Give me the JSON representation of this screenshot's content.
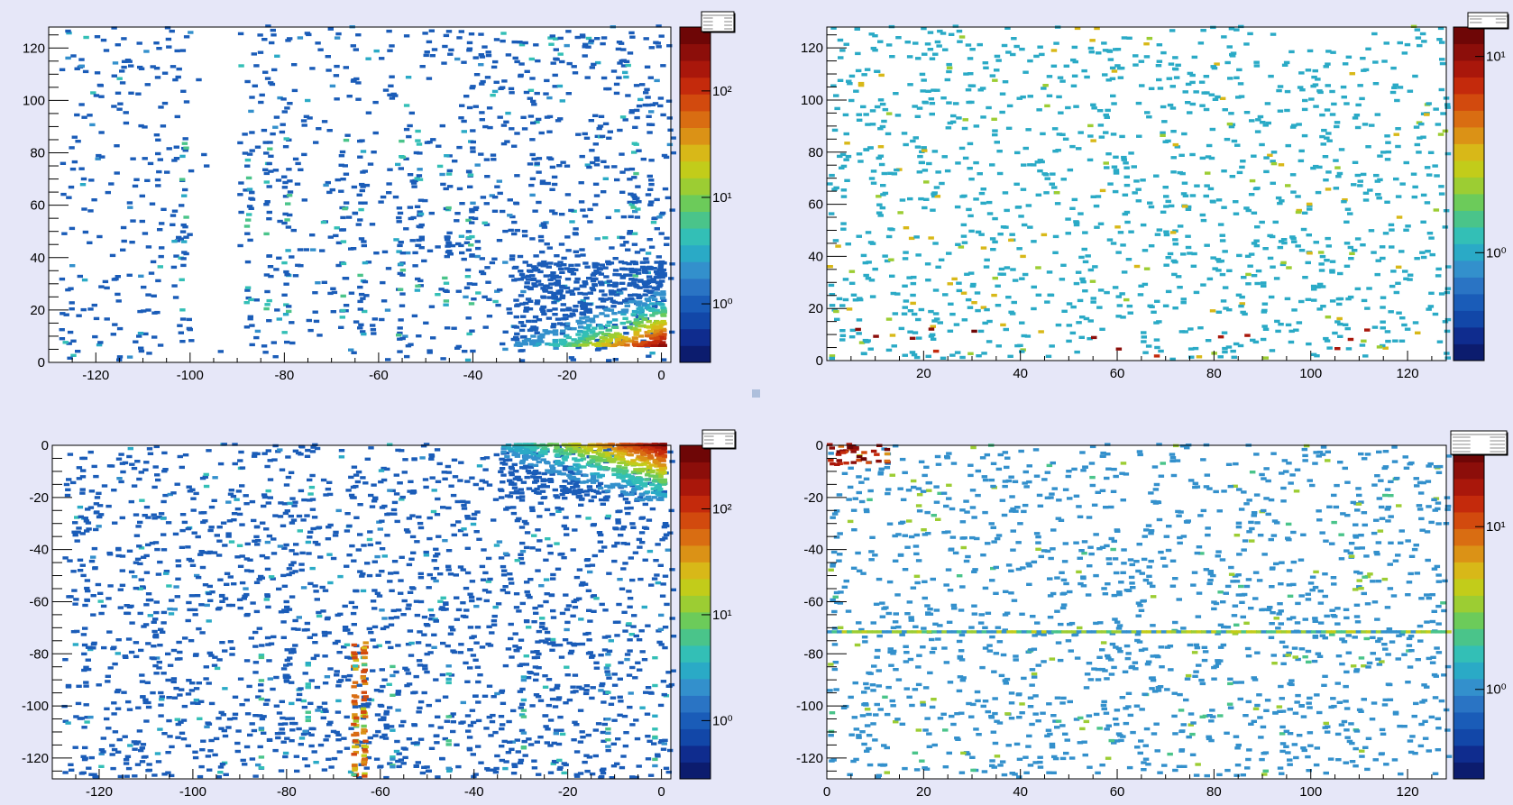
{
  "chart_data": [
    {
      "type": "heatmap",
      "title": "",
      "xlabel": "",
      "ylabel": "",
      "xlim": [
        -130,
        2
      ],
      "ylim": [
        0,
        128
      ],
      "x_ticks": [
        "-120",
        "-100",
        "-80",
        "-60",
        "-40",
        "-20",
        "0"
      ],
      "y_ticks": [
        "0",
        "20",
        "40",
        "60",
        "80",
        "100",
        "120"
      ],
      "color_scale": "log",
      "palette_labels": [
        "10⁰",
        "10¹",
        "10²"
      ],
      "palette_decades": [
        0,
        1,
        2
      ],
      "palette_max_log": 2.6,
      "has_stats_box": true,
      "features": {
        "hotspot": "bottom-right corner near (0, 5), values above 100, falling off along the x axis and along y",
        "sparse_noise": "single counts spread over the whole plane, denser for x > -40",
        "vertical_stripes_x": [
          -102,
          -88,
          -84,
          -80,
          -68,
          -64,
          -56,
          -52,
          -46,
          -41,
          -6
        ],
        "empty_band_x": [
          -100,
          -90
        ]
      }
    },
    {
      "type": "heatmap",
      "title": "",
      "xlabel": "",
      "ylabel": "",
      "xlim": [
        0,
        128
      ],
      "ylim": [
        0,
        128
      ],
      "x_ticks": [
        "20",
        "40",
        "60",
        "80",
        "100",
        "120"
      ],
      "y_ticks": [
        "0",
        "20",
        "40",
        "60",
        "80",
        "100",
        "120"
      ],
      "color_scale": "log",
      "palette_labels": [
        "10⁰",
        "10¹"
      ],
      "palette_decades": [
        0,
        1
      ],
      "palette_max_log": 1.15,
      "has_stats_box": true,
      "features": {
        "sparse_noise": "isolated cells of 1 to 3 counts spread uniformly over the plane",
        "hot_cells": "a few cells of about 10 counts near y between 0 and 12"
      }
    },
    {
      "type": "heatmap",
      "title": "",
      "xlabel": "",
      "ylabel": "",
      "xlim": [
        -130,
        2
      ],
      "ylim": [
        -128,
        0
      ],
      "x_ticks": [
        "-120",
        "-100",
        "-80",
        "-60",
        "-40",
        "-20",
        "0"
      ],
      "y_ticks": [
        "0",
        "-20",
        "-40",
        "-60",
        "-80",
        "-100",
        "-120"
      ],
      "color_scale": "log",
      "palette_labels": [
        "10⁰",
        "10¹",
        "10²"
      ],
      "palette_decades": [
        0,
        1,
        2
      ],
      "palette_max_log": 2.6,
      "has_stats_box": true,
      "features": {
        "hotspot": "top-right corner near (0, 0), values above 100, falling off towards x = -30 and y = -20",
        "sparse_noise": "single counts spread over the whole plane",
        "hot_stripes_x": [
          -66,
          -64
        ],
        "hot_stripes_y": [
          -76,
          -128
        ]
      }
    },
    {
      "type": "heatmap",
      "title": "",
      "xlabel": "",
      "ylabel": "",
      "xlim": [
        0,
        128
      ],
      "ylim": [
        -128,
        0
      ],
      "x_ticks": [
        "0",
        "20",
        "40",
        "60",
        "80",
        "100",
        "120"
      ],
      "y_ticks": [
        "0",
        "-20",
        "-40",
        "-60",
        "-80",
        "-100",
        "-120"
      ],
      "color_scale": "log",
      "palette_labels": [
        "10⁰",
        "10¹"
      ],
      "palette_decades": [
        0,
        1
      ],
      "palette_max_log": 1.5,
      "has_stats_box": true,
      "features": {
        "sparse_noise": "isolated cells of 1 to 3 counts spread uniformly over the plane",
        "hotspot": "top-left corner near (2, -3), about 10 to 20 counts",
        "horizontal_line_y": -72
      }
    }
  ],
  "colors": {
    "background": "#e6e7f8",
    "plot_background": "#ffffff",
    "palette": [
      "#0c1c6e",
      "#0f2c8e",
      "#1247a8",
      "#1a5cb8",
      "#2a74c4",
      "#3390cc",
      "#2aaac6",
      "#33bfb6",
      "#4ac48a",
      "#6ccb5a",
      "#9ccd33",
      "#c2cc1a",
      "#d8b818",
      "#db9216",
      "#d96d12",
      "#d24a0e",
      "#c42a0c",
      "#a9170b",
      "#8c0e0a",
      "#6e0606"
    ]
  }
}
